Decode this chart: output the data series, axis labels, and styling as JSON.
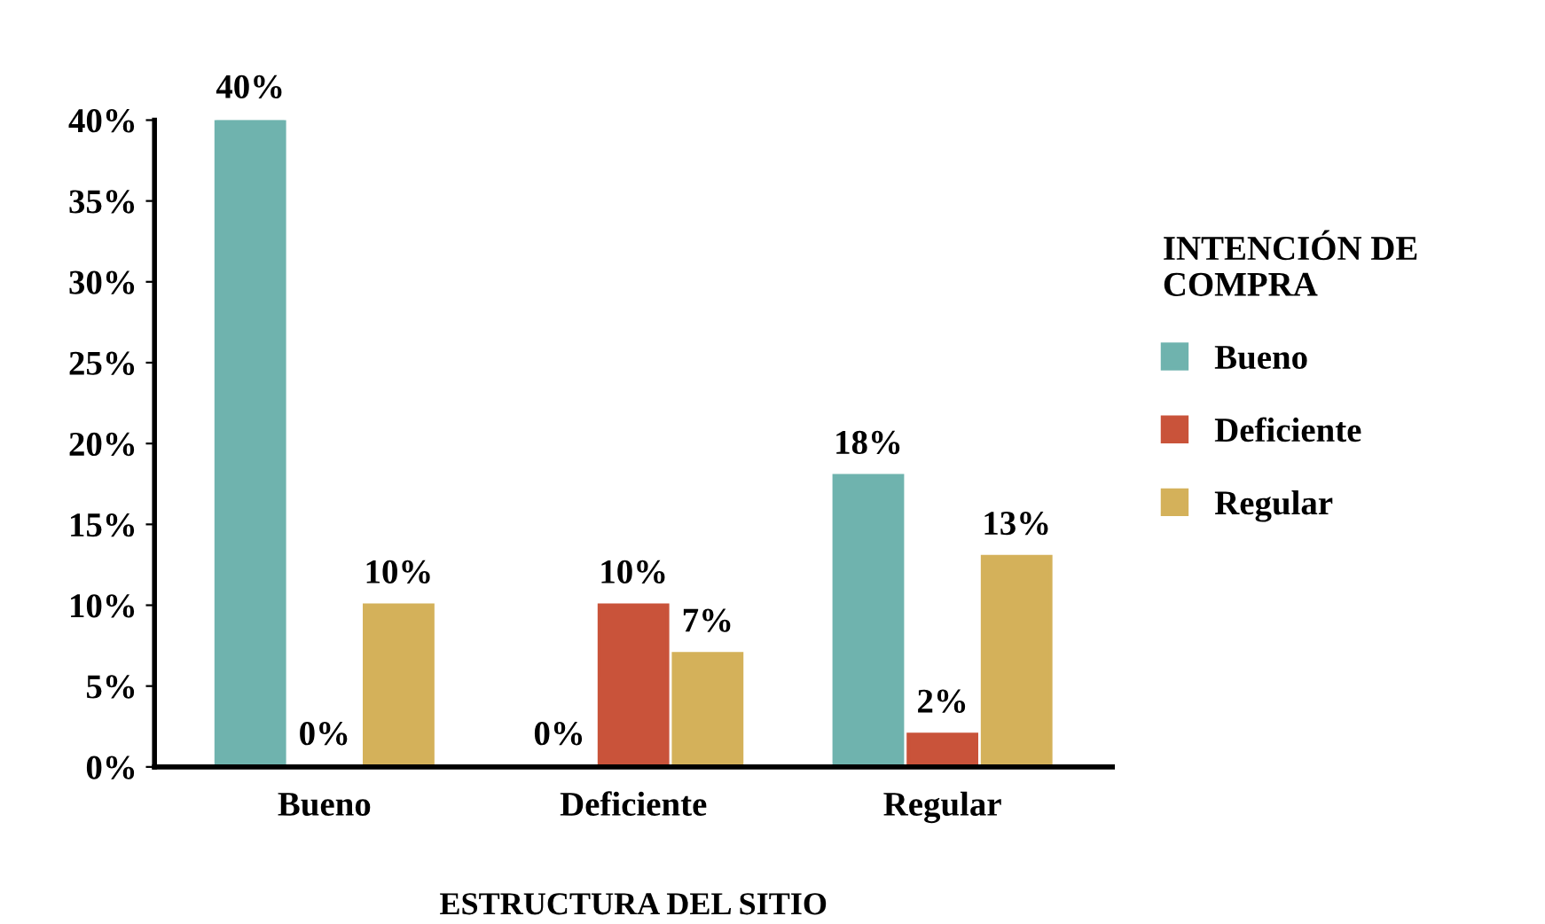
{
  "chart_data": {
    "type": "bar",
    "xlabel": "ESTRUCTURA DEL SITIO",
    "legend_title": "INTENCIÓN DE\nCOMPRA",
    "categories": [
      "Bueno",
      "Deficiente",
      "Regular"
    ],
    "series": [
      {
        "name": "Bueno",
        "color": "#6fb3ae",
        "values": [
          40,
          0,
          18
        ],
        "value_labels": [
          "40%",
          "0%",
          "18%"
        ]
      },
      {
        "name": "Deficiente",
        "color": "#c9533a",
        "values": [
          0,
          10,
          2
        ],
        "value_labels": [
          "0%",
          "10%",
          "2%"
        ]
      },
      {
        "name": "Regular",
        "color": "#d4b15a",
        "values": [
          10,
          7,
          13
        ],
        "value_labels": [
          "10%",
          "7%",
          "13%"
        ]
      }
    ],
    "ylim": [
      0,
      40
    ],
    "yticks": [
      {
        "value": 0,
        "label": "0%"
      },
      {
        "value": 5,
        "label": "5%"
      },
      {
        "value": 10,
        "label": "10%"
      },
      {
        "value": 15,
        "label": "15%"
      },
      {
        "value": 20,
        "label": "20%"
      },
      {
        "value": 25,
        "label": "25%"
      },
      {
        "value": 30,
        "label": "30%"
      },
      {
        "value": 35,
        "label": "35%"
      },
      {
        "value": 40,
        "label": "40%"
      }
    ],
    "grid": false,
    "legend": "right"
  }
}
